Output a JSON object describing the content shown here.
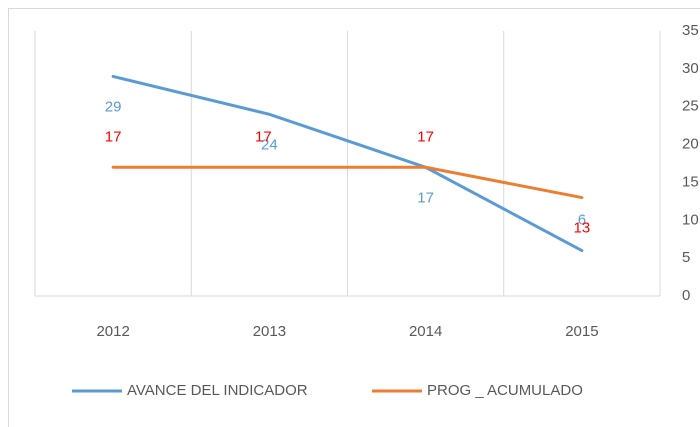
{
  "chart_data": {
    "type": "line",
    "categories": [
      "2012",
      "2013",
      "2014",
      "2015"
    ],
    "series": [
      {
        "name": "AVANCE DEL INDICADOR",
        "color": "#5b9bd5",
        "label_color": "#5b9bd5",
        "values": [
          29,
          24,
          17,
          6
        ]
      },
      {
        "name": "PROG _ ACUMULADO",
        "color": "#ed7d31",
        "label_color": "#ff0000",
        "values": [
          17,
          17,
          17,
          13
        ]
      }
    ],
    "ylim": [
      0,
      35
    ],
    "yticks": [
      0,
      5,
      10,
      15,
      20,
      25,
      30,
      35
    ],
    "y_axis_side": "right",
    "grid": "vertical",
    "legend": "bottom"
  }
}
